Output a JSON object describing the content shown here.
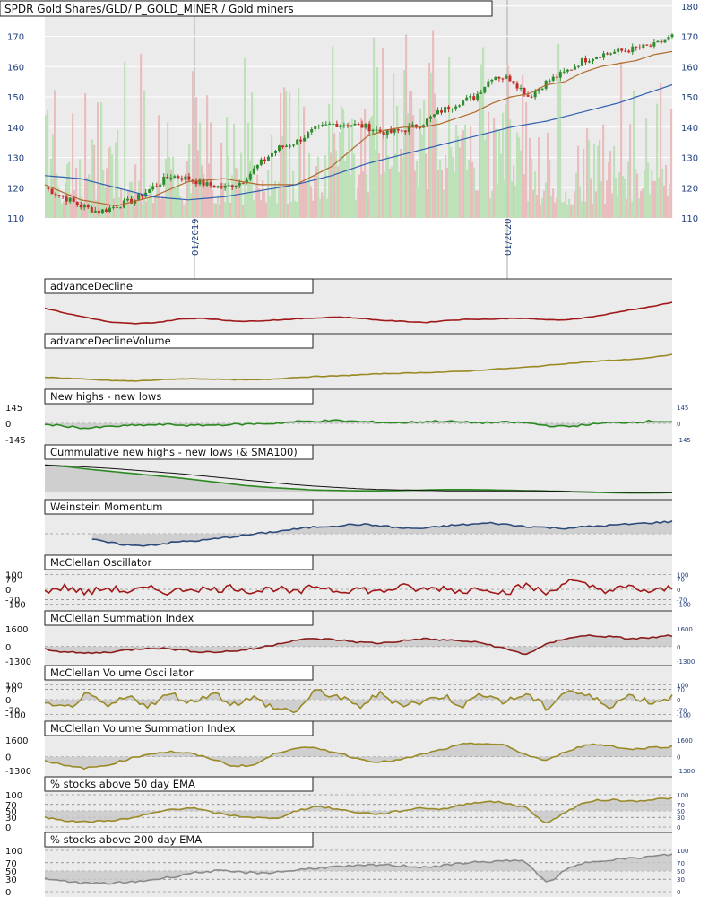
{
  "title": "SPDR Gold Shares/GLD/ P_GOLD_MINER / Gold miners",
  "colors": {
    "background": "#ffffff",
    "plot_bg": "#ebebeb",
    "up_candle": "#2e8b2e",
    "down_candle": "#c82828",
    "sma50": "#b06a2c",
    "sma200": "#3060b0",
    "volume_up": "#b6dfb0",
    "volume_down": "#e8b6b6",
    "red_line": "#a01818",
    "olive_line": "#9a8a26",
    "green_line": "#2a8a20",
    "navy_line": "#2c4a7a",
    "grey_line": "#8a8a8a",
    "axis_text": "#1f3d7a"
  },
  "chart_data": [
    {
      "type": "line",
      "title": "SPDR Gold Shares/GLD/ P_GOLD_MINER / Gold miners",
      "x_tick_labels": [
        "01/2019",
        "01/2020"
      ],
      "y_ticks": [
        110,
        120,
        130,
        140,
        150,
        160,
        170,
        180
      ],
      "ylim": [
        110,
        182
      ],
      "grid": true,
      "series": [
        {
          "role": "price",
          "x": [
            0,
            20,
            40,
            60,
            80,
            100,
            120,
            140,
            160,
            180,
            200,
            220,
            240,
            260,
            280,
            300,
            320,
            340,
            360,
            380,
            400,
            420,
            440,
            460,
            480,
            500,
            520,
            540,
            560,
            580,
            600,
            620,
            640,
            660,
            680,
            700
          ],
          "values": [
            120,
            117,
            114,
            112,
            114,
            116,
            120,
            124,
            123,
            121,
            120,
            122,
            128,
            133,
            135,
            139,
            141,
            141,
            140,
            138,
            139,
            141,
            145,
            148,
            150,
            157,
            156,
            150,
            155,
            158,
            162,
            164,
            165,
            166,
            167,
            170
          ]
        },
        {
          "role": "sma50",
          "x": [
            0,
            40,
            80,
            120,
            160,
            200,
            240,
            280,
            320,
            340,
            360,
            380,
            400,
            420,
            440,
            460,
            480,
            500,
            520,
            540,
            560,
            580,
            600,
            620,
            640,
            660,
            680,
            700
          ],
          "values": [
            121,
            116,
            114,
            117,
            122,
            123,
            121,
            121,
            127,
            132,
            137,
            139,
            140,
            140,
            141,
            143,
            145,
            148,
            150,
            151,
            154,
            155,
            158,
            160,
            161,
            162,
            164,
            165
          ]
        },
        {
          "role": "sma200",
          "x": [
            0,
            40,
            80,
            120,
            160,
            200,
            240,
            280,
            320,
            360,
            400,
            440,
            480,
            520,
            560,
            600,
            640,
            680,
            700
          ],
          "values": [
            124,
            123,
            120,
            117,
            116,
            117,
            119,
            121,
            124,
            128,
            131,
            134,
            137,
            140,
            142,
            145,
            148,
            152,
            154
          ]
        }
      ]
    },
    {
      "type": "line",
      "title": "advanceDecline",
      "series": [
        {
          "name": "advanceDecline",
          "values": [
            62,
            57,
            53,
            49,
            48,
            49,
            52,
            53,
            51,
            50,
            51,
            52,
            53,
            54,
            53,
            51,
            50,
            49,
            51,
            52,
            52,
            53,
            52,
            51,
            53,
            56,
            60,
            63,
            67
          ]
        }
      ]
    },
    {
      "type": "line",
      "title": "advanceDeclineVolume",
      "series": [
        {
          "name": "advanceDeclineVolume",
          "values": [
            30,
            28,
            26,
            24,
            23,
            25,
            27,
            27,
            26,
            25,
            26,
            29,
            31,
            32,
            34,
            36,
            37,
            38,
            39,
            41,
            44,
            46,
            49,
            53,
            56,
            59,
            61,
            64,
            70
          ]
        }
      ]
    },
    {
      "type": "area",
      "title": "New highs - new lows",
      "y_ticks": [
        -145,
        0,
        145
      ],
      "series": [
        {
          "name": "New highs - new lows",
          "values": [
            -10,
            -25,
            -45,
            -30,
            -20,
            -15,
            -10,
            -20,
            -15,
            -10,
            -5,
            0,
            15,
            20,
            25,
            15,
            10,
            5,
            15,
            20,
            10,
            5,
            10,
            5,
            -20,
            -30,
            -10,
            5,
            10,
            20,
            15
          ]
        }
      ]
    },
    {
      "type": "line",
      "title": "Cummulative new highs - new lows (& SMA100)",
      "series": [
        {
          "name": "cumulative",
          "values": [
            60,
            56,
            50,
            45,
            40,
            35,
            30,
            24,
            18,
            12,
            8,
            5,
            2,
            1,
            0,
            0,
            1,
            2,
            3,
            3,
            2,
            1,
            0,
            -1,
            -3,
            -4,
            -5,
            -5,
            -4
          ]
        },
        {
          "name": "SMA100",
          "values": [
            60,
            58,
            55,
            52,
            48,
            44,
            40,
            35,
            30,
            25,
            20,
            15,
            11,
            8,
            5,
            3,
            2,
            1,
            0,
            0,
            0,
            0,
            0,
            -1,
            -2,
            -3,
            -4,
            -4,
            -4
          ]
        }
      ]
    },
    {
      "type": "area",
      "title": "Weinstein Momentum",
      "series": [
        {
          "name": "Weinstein Momentum",
          "values": [
            null,
            null,
            -20,
            -35,
            -45,
            -40,
            -30,
            -25,
            -15,
            -5,
            5,
            15,
            25,
            30,
            35,
            30,
            20,
            20,
            30,
            35,
            40,
            30,
            25,
            20,
            25,
            30,
            35,
            40,
            45
          ]
        }
      ]
    },
    {
      "type": "line",
      "title": "McClellan Oscillator",
      "y_ticks": [
        -100,
        -70,
        0,
        70,
        100
      ],
      "series": [
        {
          "name": "McClellan Oscillator",
          "values": [
            -10,
            15,
            -25,
            10,
            -15,
            5,
            -20,
            10,
            -5,
            15,
            -15,
            10,
            -30,
            25,
            -10,
            5,
            -20,
            20,
            -5,
            10,
            -15,
            15,
            -25,
            30,
            -30,
            60,
            20,
            -10,
            15,
            -20,
            10
          ]
        }
      ]
    },
    {
      "type": "area",
      "title": "McClellan Summation Index",
      "y_ticks": [
        -1300,
        0,
        1600
      ],
      "series": [
        {
          "name": "McClellan Summation Index",
          "values": [
            -200,
            -500,
            -600,
            -500,
            -300,
            -100,
            -200,
            -400,
            -500,
            -400,
            -200,
            200,
            600,
            700,
            600,
            400,
            300,
            500,
            700,
            600,
            500,
            300,
            -200,
            -700,
            200,
            800,
            1000,
            900,
            700,
            800,
            1000
          ]
        }
      ]
    },
    {
      "type": "area",
      "title": "McClellan Volume Oscillator",
      "y_ticks": [
        -100,
        -70,
        0,
        70,
        100
      ],
      "series": [
        {
          "name": "McClellan Volume Oscillator",
          "values": [
            -40,
            -60,
            30,
            -50,
            20,
            -40,
            40,
            -20,
            50,
            -30,
            10,
            -60,
            -80,
            60,
            20,
            -50,
            40,
            -30,
            -20,
            30,
            -40,
            50,
            -20,
            40,
            -60,
            70,
            20,
            -40,
            30,
            -20,
            20
          ]
        }
      ]
    },
    {
      "type": "area",
      "title": "McClellan Volume Summation Index",
      "y_ticks": [
        -1300,
        0,
        1600
      ],
      "series": [
        {
          "name": "McClellan Volume Summation Index",
          "values": [
            -300,
            -900,
            -1100,
            -800,
            -200,
            300,
            500,
            300,
            -200,
            -900,
            -800,
            300,
            900,
            800,
            400,
            -200,
            -500,
            -300,
            200,
            700,
            1200,
            1300,
            1100,
            200,
            -400,
            600,
            1200,
            1100,
            700,
            900,
            1000
          ]
        }
      ]
    },
    {
      "type": "area",
      "title": "% stocks above 50 day EMA",
      "y_ticks": [
        0,
        30,
        50,
        70,
        100
      ],
      "series": [
        {
          "name": "% stocks above 50 day EMA",
          "values": [
            30,
            20,
            15,
            20,
            25,
            40,
            55,
            60,
            45,
            35,
            30,
            25,
            50,
            65,
            55,
            45,
            40,
            50,
            60,
            55,
            70,
            80,
            75,
            60,
            10,
            50,
            80,
            85,
            80,
            85,
            90
          ]
        }
      ]
    },
    {
      "type": "area",
      "title": "% stocks above 200 day EMA",
      "y_ticks": [
        0,
        30,
        50,
        70,
        100
      ],
      "series": [
        {
          "name": "% stocks above 200 day EMA",
          "values": [
            30,
            25,
            20,
            20,
            22,
            28,
            35,
            45,
            50,
            48,
            45,
            47,
            52,
            58,
            60,
            62,
            65,
            63,
            60,
            62,
            70,
            72,
            75,
            73,
            20,
            55,
            72,
            78,
            80,
            85,
            90
          ]
        }
      ]
    }
  ]
}
